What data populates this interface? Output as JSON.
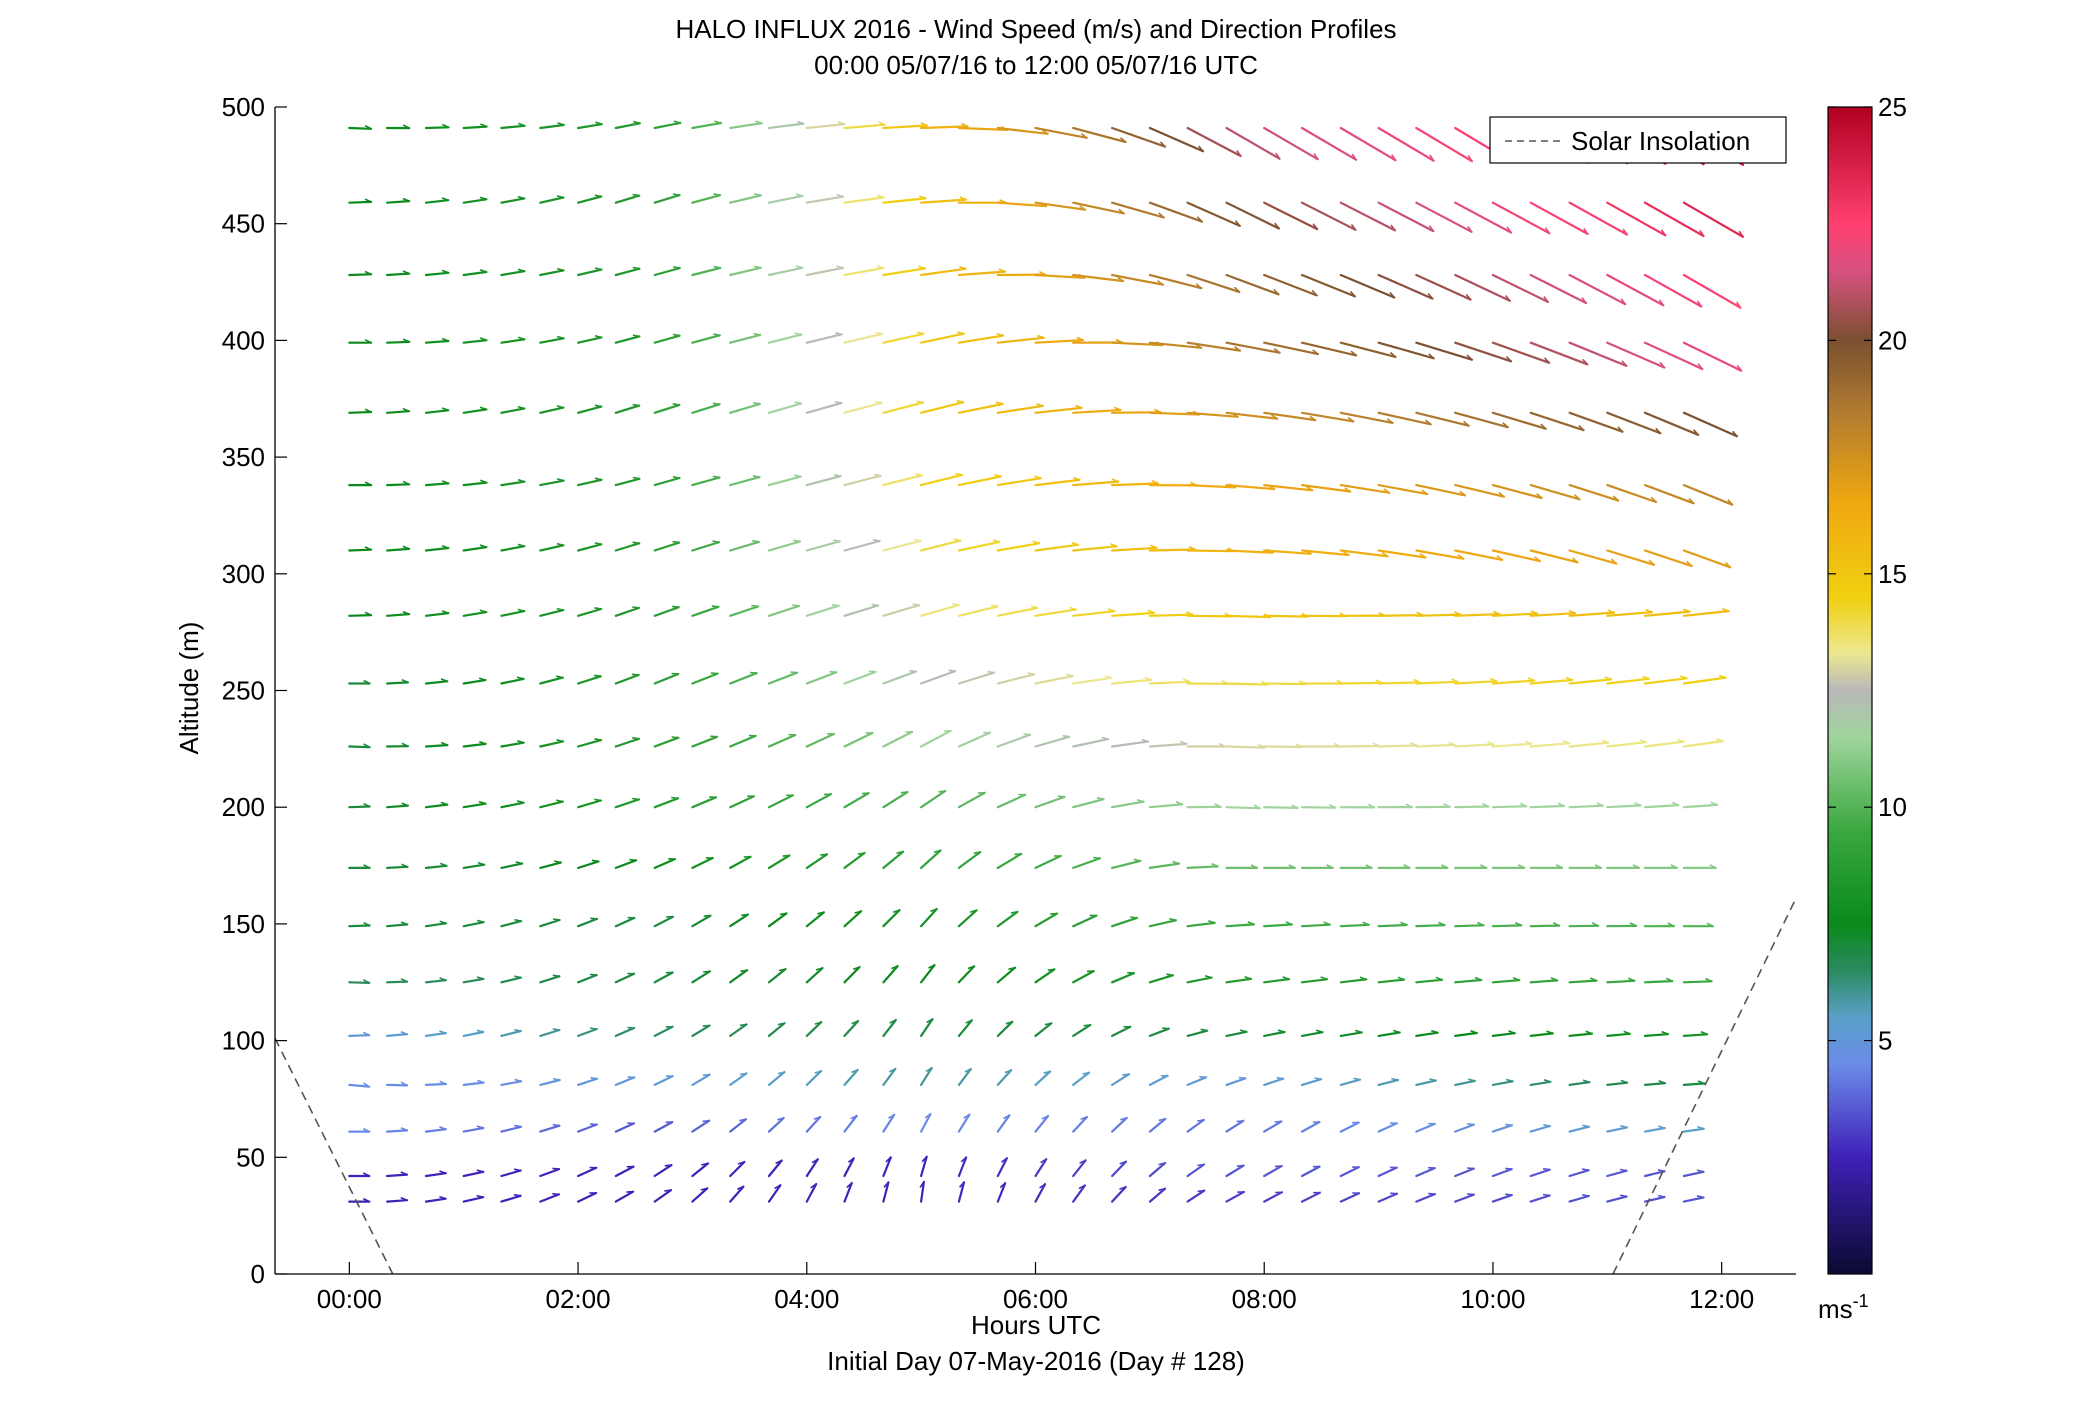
{
  "title_line1": "HALO INFLUX 2016 - Wind Speed (m/s) and Direction Profiles",
  "title_line2": "00:00 05/07/16 to 12:00 05/07/16  UTC",
  "xlabel": "Hours UTC",
  "subtitle": "Initial Day 07-May-2016 (Day # 128)",
  "ylabel": "Altitude (m)",
  "legend_label": "Solar Insolation",
  "colorbar_unit_base": "ms",
  "colorbar_unit_exp": "-1",
  "chart_data": {
    "type": "quiver",
    "title": "HALO INFLUX 2016 - Wind Speed (m/s) and Direction Profiles",
    "x_unit": "hours UTC",
    "xlim": [
      -0.65,
      12.65
    ],
    "ylim": [
      0,
      500
    ],
    "x_ticks": [
      0,
      2,
      4,
      6,
      8,
      10,
      12
    ],
    "x_tick_labels": [
      "00:00",
      "02:00",
      "04:00",
      "06:00",
      "08:00",
      "10:00",
      "12:00"
    ],
    "y_ticks": [
      0,
      50,
      100,
      150,
      200,
      250,
      300,
      350,
      400,
      450,
      500
    ],
    "y_tick_labels": [
      "0",
      "50",
      "100",
      "150",
      "200",
      "250",
      "300",
      "350",
      "400",
      "450",
      "500"
    ],
    "colorbar": {
      "range": [
        0,
        25
      ],
      "ticks": [
        5,
        10,
        15,
        20,
        25
      ],
      "tick_labels": [
        "5",
        "10",
        "15",
        "20",
        "25"
      ],
      "stops": [
        {
          "v": 0,
          "c": "#0a0a30"
        },
        {
          "v": 2.5,
          "c": "#4020b8"
        },
        {
          "v": 4.5,
          "c": "#6a8ce8"
        },
        {
          "v": 5.5,
          "c": "#5aa0c8"
        },
        {
          "v": 6.5,
          "c": "#2a8a60"
        },
        {
          "v": 7.5,
          "c": "#0a8a1a"
        },
        {
          "v": 9.5,
          "c": "#3aa840"
        },
        {
          "v": 11.5,
          "c": "#a0d49c"
        },
        {
          "v": 12.5,
          "c": "#b8b8b8"
        },
        {
          "v": 13.3,
          "c": "#ece890"
        },
        {
          "v": 14.5,
          "c": "#f0d010"
        },
        {
          "v": 16.5,
          "c": "#f0a810"
        },
        {
          "v": 18.5,
          "c": "#b07a30"
        },
        {
          "v": 20,
          "c": "#7a5030"
        },
        {
          "v": 21.5,
          "c": "#d85080"
        },
        {
          "v": 22.5,
          "c": "#ff4070"
        },
        {
          "v": 25,
          "c": "#b00020"
        }
      ]
    },
    "altitudes": [
      31,
      42,
      61,
      81,
      102,
      125,
      149,
      174,
      200,
      226,
      253,
      282,
      310,
      338,
      369,
      399,
      428,
      459,
      491
    ],
    "times": [
      0,
      0.33,
      0.67,
      1,
      1.33,
      1.67,
      2,
      2.33,
      2.67,
      3,
      3.33,
      3.67,
      4,
      4.33,
      4.67,
      5,
      5.33,
      5.67,
      6,
      6.33,
      6.67,
      7,
      7.33,
      7.67,
      8,
      8.33,
      8.67,
      9,
      9.33,
      9.67,
      10,
      10.33,
      10.67,
      11,
      11.33,
      11.67
    ],
    "direction_profiles_deg": [
      {
        "t": 0,
        "dir": [
          270,
          270,
          270,
          275,
          268,
          272,
          268,
          270,
          268,
          272,
          270,
          268,
          268,
          270,
          268,
          270,
          268,
          268,
          272
        ]
      },
      {
        "t": 2.5,
        "dir": [
          238,
          240,
          244,
          246,
          245,
          243,
          244,
          248,
          250,
          250,
          248,
          250,
          252,
          254,
          252,
          254,
          254,
          252,
          258
        ]
      },
      {
        "t": 5,
        "dir": [
          188,
          196,
          208,
          212,
          214,
          218,
          222,
          228,
          236,
          242,
          250,
          254,
          256,
          256,
          256,
          258,
          262,
          266,
          268
        ]
      },
      {
        "t": 7.5,
        "dir": [
          240,
          238,
          236,
          250,
          258,
          262,
          266,
          270,
          272,
          272,
          272,
          272,
          272,
          274,
          276,
          280,
          290,
          296,
          300
        ]
      },
      {
        "t": 11.67,
        "dir": [
          258,
          258,
          262,
          266,
          266,
          268,
          270,
          270,
          266,
          262,
          262,
          264,
          290,
          292,
          294,
          296,
          300,
          300,
          302
        ]
      }
    ],
    "speed_profiles_ms": [
      {
        "t": 0,
        "speed": [
          2.5,
          2.5,
          4.5,
          4.5,
          5,
          6.5,
          7,
          7,
          7,
          7,
          7,
          7.5,
          7.5,
          7.5,
          7.5,
          7.5,
          7.5,
          7.5,
          7.5
        ]
      },
      {
        "t": 2.5,
        "speed": [
          2.5,
          2.5,
          3.5,
          5,
          6.5,
          7,
          7,
          7.5,
          8.5,
          8.5,
          8.5,
          8.5,
          8.5,
          8.5,
          8.5,
          8.5,
          8.5,
          8.5,
          8.5
        ]
      },
      {
        "t": 5,
        "speed": [
          2.5,
          2.5,
          4.5,
          6,
          7,
          7.5,
          8,
          9,
          10,
          11.5,
          12.5,
          13.5,
          14,
          14.5,
          15,
          15,
          15.5,
          15.5,
          16
        ]
      },
      {
        "t": 7.5,
        "speed": [
          3,
          3.5,
          4,
          5,
          7,
          8.5,
          9.5,
          10.5,
          11.5,
          13,
          14,
          15,
          16,
          16.5,
          17.5,
          18.5,
          19,
          20,
          21
        ]
      },
      {
        "t": 11.67,
        "speed": [
          3.5,
          3.5,
          5.5,
          7,
          8,
          9.5,
          10,
          11,
          11.5,
          13.5,
          14.5,
          15.5,
          17,
          18,
          20,
          22,
          22.5,
          23.5,
          24
        ]
      }
    ],
    "solar_insolation": {
      "style": "dashed",
      "color": "#555555",
      "segments": [
        {
          "x": [
            -0.65,
            0.38
          ],
          "y": [
            101,
            0
          ]
        },
        {
          "x": [
            11.05,
            12.65
          ],
          "y": [
            0,
            161
          ]
        }
      ]
    },
    "grid": false,
    "legend_placement": "top-right"
  }
}
